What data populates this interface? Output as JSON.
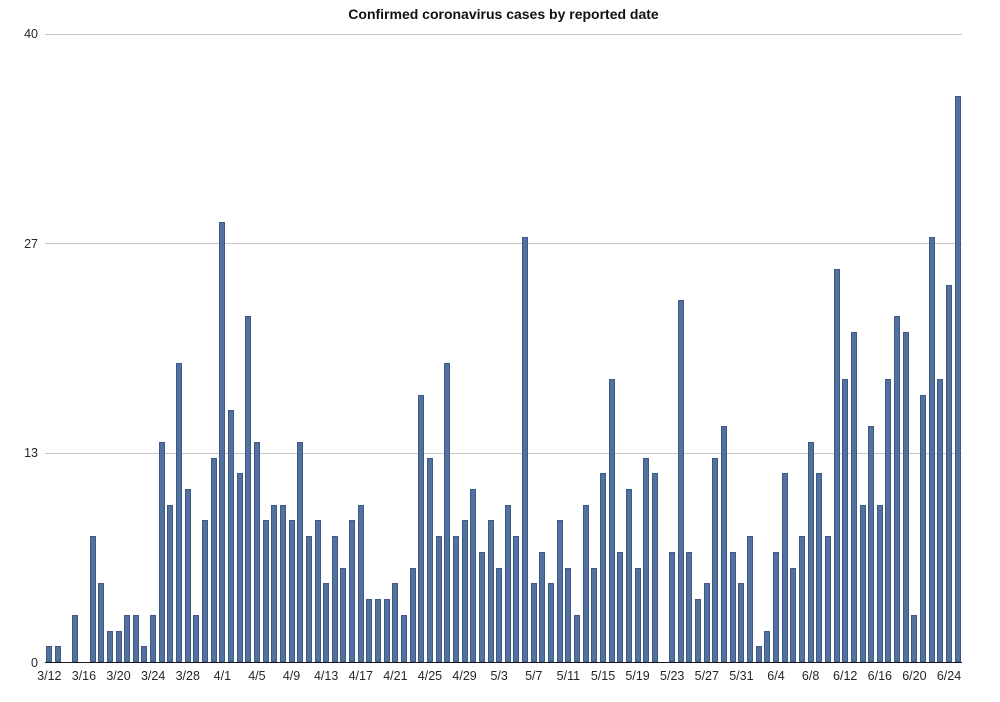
{
  "title": "Confirmed coronavirus cases by reported date",
  "colors": {
    "bar_fill": "#53719f",
    "bar_border": "#3d5a87",
    "gridline": "#c6c6c6",
    "axis_line": "#1a1a1a",
    "text": "#262626",
    "background": "#ffffff"
  },
  "chart_data": {
    "type": "bar",
    "title": "Confirmed coronavirus cases by reported date",
    "xlabel": "",
    "ylabel": "",
    "ylim": [
      0,
      40
    ],
    "grid": "horizontal",
    "legend": "none",
    "y_ticks": [
      {
        "label": "0",
        "value": 0
      },
      {
        "label": "13",
        "value": 13.333
      },
      {
        "label": "27",
        "value": 26.667
      },
      {
        "label": "40",
        "value": 40
      }
    ],
    "x_tick_every": 4,
    "x_tick_labels": [
      "3/12",
      "3/16",
      "3/20",
      "3/24",
      "3/28",
      "4/1",
      "4/5",
      "4/9",
      "4/13",
      "4/17",
      "4/21",
      "4/25",
      "4/29",
      "5/3",
      "5/7",
      "5/11",
      "5/15",
      "5/19",
      "5/23",
      "5/27",
      "5/31",
      "6/4",
      "6/8",
      "6/12",
      "6/16",
      "6/20",
      "6/24"
    ],
    "categories": [
      "3/12",
      "3/13",
      "3/14",
      "3/15",
      "3/16",
      "3/17",
      "3/18",
      "3/19",
      "3/20",
      "3/21",
      "3/22",
      "3/23",
      "3/24",
      "3/25",
      "3/26",
      "3/27",
      "3/28",
      "3/29",
      "3/30",
      "3/31",
      "4/1",
      "4/2",
      "4/3",
      "4/4",
      "4/5",
      "4/6",
      "4/7",
      "4/8",
      "4/9",
      "4/10",
      "4/11",
      "4/12",
      "4/13",
      "4/14",
      "4/15",
      "4/16",
      "4/17",
      "4/18",
      "4/19",
      "4/20",
      "4/21",
      "4/22",
      "4/23",
      "4/24",
      "4/25",
      "4/26",
      "4/27",
      "4/28",
      "4/29",
      "4/30",
      "5/1",
      "5/2",
      "5/3",
      "5/4",
      "5/5",
      "5/6",
      "5/7",
      "5/8",
      "5/9",
      "5/10",
      "5/11",
      "5/12",
      "5/13",
      "5/14",
      "5/15",
      "5/16",
      "5/17",
      "5/18",
      "5/19",
      "5/20",
      "5/21",
      "5/22",
      "5/23",
      "5/24",
      "5/25",
      "5/26",
      "5/27",
      "5/28",
      "5/29",
      "5/30",
      "5/31",
      "6/1",
      "6/2",
      "6/3",
      "6/4",
      "6/5",
      "6/6",
      "6/7",
      "6/8",
      "6/9",
      "6/10",
      "6/11",
      "6/12",
      "6/13",
      "6/14",
      "6/15",
      "6/16",
      "6/17",
      "6/18",
      "6/19",
      "6/20",
      "6/21",
      "6/22",
      "6/23",
      "6/24",
      "6/25"
    ],
    "values": [
      1,
      1,
      0,
      3,
      0,
      8,
      5,
      2,
      2,
      3,
      3,
      1,
      3,
      14,
      10,
      19,
      11,
      3,
      9,
      13,
      28,
      16,
      12,
      22,
      14,
      9,
      10,
      10,
      9,
      14,
      8,
      9,
      5,
      8,
      6,
      9,
      10,
      4,
      4,
      4,
      5,
      3,
      6,
      17,
      13,
      8,
      19,
      8,
      9,
      11,
      7,
      9,
      6,
      10,
      8,
      27,
      5,
      7,
      5,
      9,
      6,
      3,
      10,
      6,
      12,
      18,
      7,
      11,
      6,
      13,
      12,
      0,
      7,
      23,
      7,
      4,
      5,
      13,
      15,
      7,
      5,
      8,
      1,
      2,
      7,
      12,
      6,
      8,
      14,
      12,
      8,
      25,
      18,
      21,
      10,
      15,
      10,
      18,
      22,
      21,
      3,
      17,
      27,
      18,
      24,
      36
    ]
  }
}
